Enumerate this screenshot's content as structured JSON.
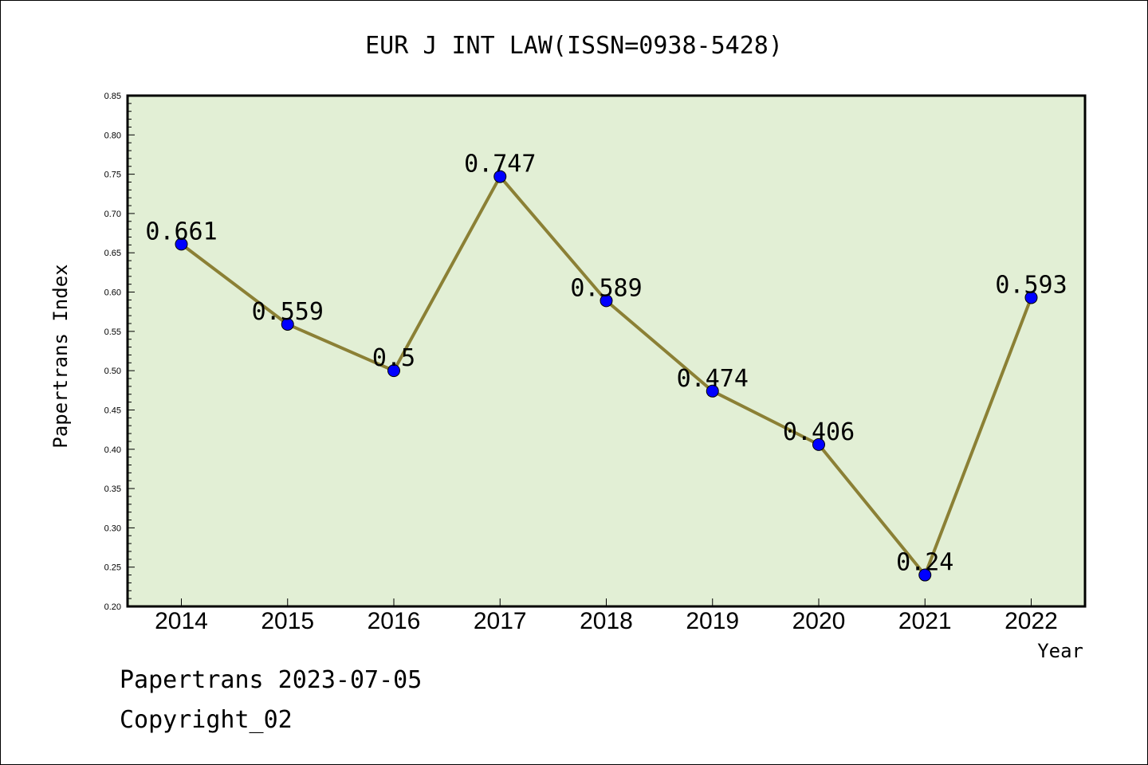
{
  "chart_data": {
    "type": "line",
    "title": "EUR J INT LAW(ISSN=0938-5428)",
    "xlabel": "Year",
    "ylabel": "Papertrans Index",
    "categories": [
      "2014",
      "2015",
      "2016",
      "2017",
      "2018",
      "2019",
      "2020",
      "2021",
      "2022"
    ],
    "values": [
      0.661,
      0.559,
      0.5,
      0.747,
      0.589,
      0.474,
      0.406,
      0.24,
      0.593
    ],
    "data_labels": [
      "0.661",
      "0.559",
      "0.5",
      "0.747",
      "0.589",
      "0.474",
      "0.406",
      "0.24",
      "0.593"
    ],
    "ylim": [
      0.2,
      0.85
    ],
    "yticks": [
      "0.20",
      "0.25",
      "0.30",
      "0.35",
      "0.40",
      "0.45",
      "0.50",
      "0.55",
      "0.60",
      "0.65",
      "0.70",
      "0.75",
      "0.80",
      "0.85"
    ],
    "grid": false,
    "legend": "none",
    "colors": {
      "plot_background": "#e2efd5",
      "line": "#8b8035",
      "marker": "#0000ff"
    }
  },
  "footer": {
    "line1": "Papertrans 2023-07-05",
    "line2": "Copyright_02"
  }
}
